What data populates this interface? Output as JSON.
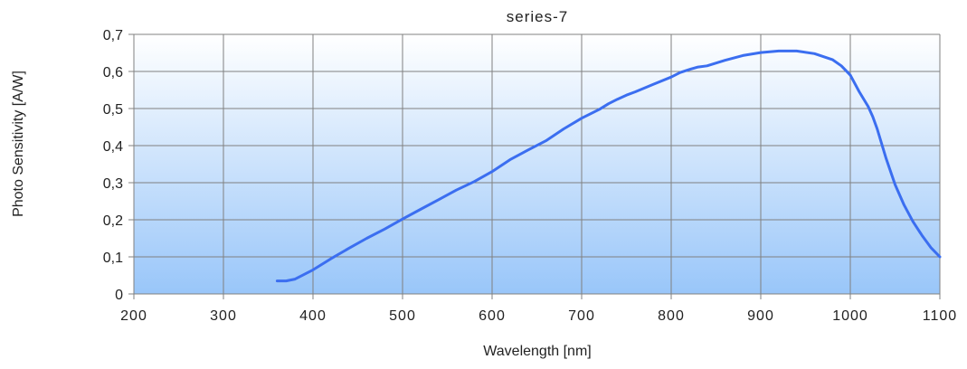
{
  "chart_data": {
    "type": "line",
    "title": "series-7",
    "xlabel": "Wavelength [nm]",
    "ylabel": "Photo Sensitivity [A/W]",
    "xlim": [
      200,
      1100
    ],
    "ylim": [
      0,
      0.7
    ],
    "x_ticks": [
      200,
      300,
      400,
      500,
      600,
      700,
      800,
      900,
      1000,
      1100
    ],
    "x_tick_labels": [
      "200",
      "300",
      "400",
      "500",
      "600",
      "700",
      "800",
      "900",
      "1000",
      "1100"
    ],
    "y_ticks": [
      0,
      0.1,
      0.2,
      0.3,
      0.4,
      0.5,
      0.6,
      0.7
    ],
    "y_tick_labels": [
      "0",
      "0,1",
      "0,2",
      "0,3",
      "0,4",
      "0,5",
      "0,6",
      "0,7"
    ],
    "grid": true,
    "colors": {
      "line": "#3b6ef0",
      "bg_top": "#ffffff",
      "bg_bottom": "#99c6f9",
      "grid": "#808080"
    },
    "series": [
      {
        "x": [
          360,
          370,
          380,
          400,
          420,
          440,
          460,
          480,
          500,
          520,
          540,
          560,
          580,
          600,
          620,
          640,
          660,
          680,
          700,
          720,
          730,
          740,
          750,
          760,
          780,
          800,
          810,
          820,
          830,
          840,
          860,
          880,
          900,
          920,
          940,
          960,
          980,
          990,
          1000,
          1010,
          1020,
          1025,
          1030,
          1040,
          1050,
          1060,
          1070,
          1080,
          1090,
          1100
        ],
        "y": [
          0.035,
          0.035,
          0.04,
          0.065,
          0.095,
          0.123,
          0.15,
          0.175,
          0.202,
          0.228,
          0.254,
          0.28,
          0.303,
          0.33,
          0.362,
          0.388,
          0.413,
          0.445,
          0.474,
          0.498,
          0.513,
          0.525,
          0.536,
          0.545,
          0.565,
          0.585,
          0.597,
          0.605,
          0.612,
          0.615,
          0.63,
          0.643,
          0.651,
          0.655,
          0.655,
          0.648,
          0.632,
          0.615,
          0.59,
          0.545,
          0.505,
          0.478,
          0.445,
          0.365,
          0.295,
          0.24,
          0.195,
          0.158,
          0.125,
          0.1
        ]
      }
    ]
  }
}
